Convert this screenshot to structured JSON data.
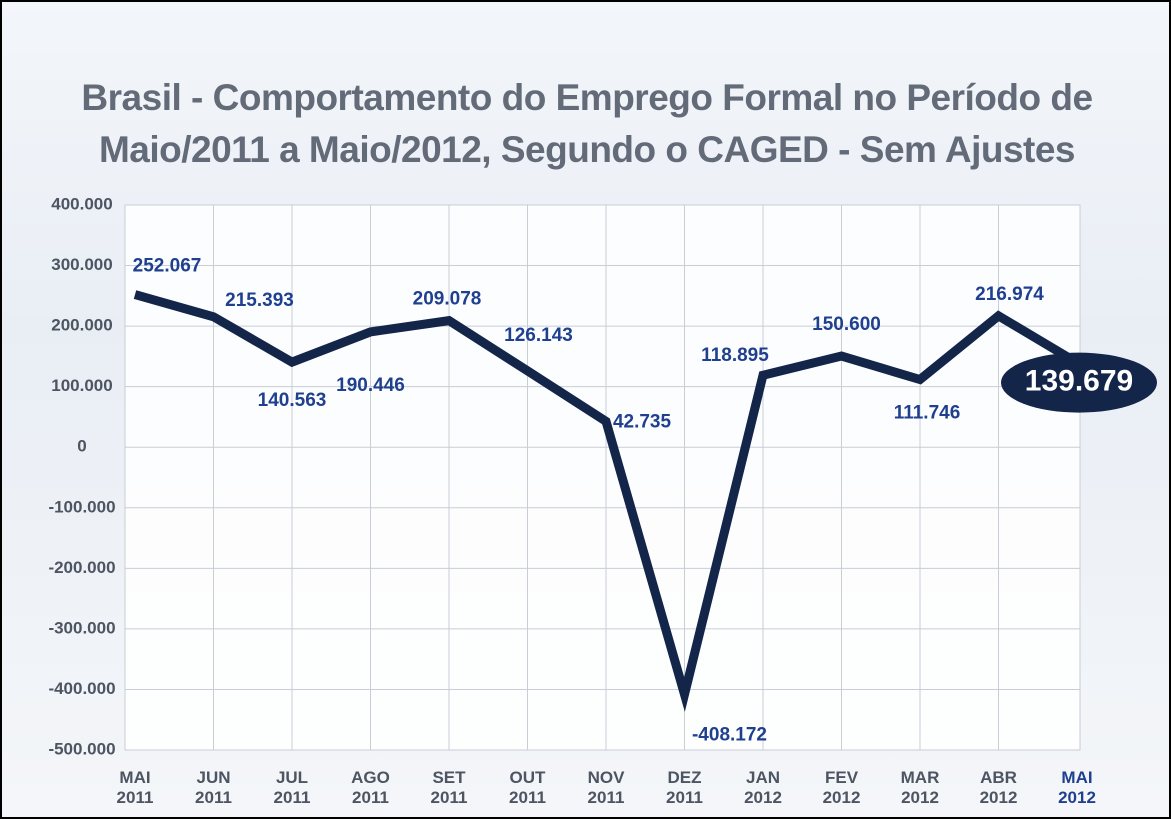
{
  "chart_data": {
    "type": "line",
    "title": "Brasil - Comportamento do Emprego Formal no Período de Maio/2011 a Maio/2012, Segundo o CAGED - Sem Ajustes",
    "categories": [
      "MAI 2011",
      "JUN 2011",
      "JUL 2011",
      "AGO 2011",
      "SET 2011",
      "OUT 2011",
      "NOV 2011",
      "DEZ 2011",
      "JAN 2012",
      "FEV 2012",
      "MAR 2012",
      "ABR 2012",
      "MAI 2012"
    ],
    "values": [
      252067,
      215393,
      140563,
      190446,
      209078,
      126143,
      42735,
      -408172,
      118895,
      150600,
      111746,
      216974,
      139679
    ],
    "value_labels": [
      "252.067",
      "215.393",
      "140.563",
      "190.446",
      "209.078",
      "126.143",
      "42.735",
      "-408.172",
      "118.895",
      "150.600",
      "111.746",
      "216.974",
      "139.679"
    ],
    "color": "#14254a",
    "ylim": [
      -500000,
      400000
    ],
    "yticks": [
      {
        "value": -500000,
        "label": "-500.000"
      },
      {
        "value": -400000,
        "label": "-400.000"
      },
      {
        "value": -300000,
        "label": "-300.000"
      },
      {
        "value": -200000,
        "label": "-200.000"
      },
      {
        "value": -100000,
        "label": "-100.000"
      },
      0,
      {
        "value": 100000,
        "label": "100.000"
      },
      {
        "value": 200000,
        "label": "200.000"
      },
      {
        "value": 300000,
        "label": "300.000"
      },
      {
        "value": 400000,
        "label": "400.000"
      }
    ],
    "grid": true
  }
}
